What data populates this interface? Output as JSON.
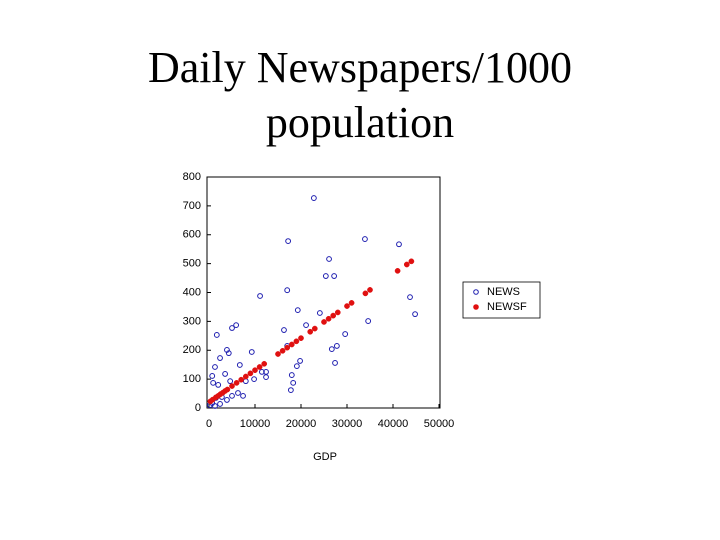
{
  "chart_data": {
    "type": "scatter",
    "title": "Daily Newspapers/1000 population",
    "x_label": "GDP",
    "xlim": [
      0,
      50000
    ],
    "xticks": [
      0,
      10000,
      20000,
      30000,
      40000,
      50000
    ],
    "ylim": [
      0,
      800
    ],
    "yticks": [
      0,
      100,
      200,
      300,
      400,
      500,
      600,
      700,
      800
    ],
    "legend": "right",
    "series": [
      {
        "name": "NEWS",
        "color": "#1f1fb0",
        "marker": "open",
        "x": [
          22800,
          17200,
          33900,
          41300,
          26100,
          25400,
          27200,
          17000,
          11100,
          43700,
          19300,
          24100,
          34600,
          44800,
          5900,
          5000,
          1700,
          16300,
          21100,
          29600,
          27800,
          26700,
          17000,
          27400,
          19800,
          19100,
          18000,
          18300,
          17800,
          9300,
          3900,
          4300,
          2400,
          6700,
          1300,
          11500,
          12400,
          12400,
          9800,
          8000,
          3500,
          4600,
          700,
          900,
          2000,
          6300,
          7400,
          5000,
          3900,
          2800,
          1500,
          700,
          200,
          1300,
          2400
        ],
        "values": [
          727,
          578,
          585,
          567,
          516,
          457,
          457,
          408,
          388,
          384,
          339,
          329,
          301,
          325,
          287,
          277,
          253,
          270,
          287,
          256,
          215,
          204,
          215,
          156,
          163,
          145,
          114,
          87,
          62,
          194,
          201,
          190,
          173,
          149,
          142,
          125,
          125,
          107,
          100,
          93,
          118,
          93,
          111,
          87,
          80,
          52,
          42,
          42,
          28,
          38,
          35,
          17,
          10,
          7,
          14
        ]
      },
      {
        "name": "NEWSF",
        "color": "#e01010",
        "marker": "filled",
        "x": [
          300,
          800,
          1500,
          2000,
          2500,
          3000,
          3500,
          4000,
          5000,
          6000,
          7000,
          8000,
          9000,
          10000,
          11000,
          12000,
          15000,
          16000,
          17000,
          18000,
          19000,
          20000,
          22000,
          23000,
          25000,
          26000,
          27000,
          28000,
          30000,
          31000,
          34000,
          35000,
          41000,
          43000,
          44000
        ],
        "values": [
          23,
          29,
          37,
          42,
          48,
          53,
          59,
          64,
          76,
          87,
          98,
          109,
          120,
          131,
          142,
          153,
          187,
          198,
          209,
          220,
          231,
          242,
          264,
          275,
          298,
          309,
          320,
          331,
          353,
          364,
          397,
          409,
          475,
          497,
          508
        ]
      }
    ]
  }
}
